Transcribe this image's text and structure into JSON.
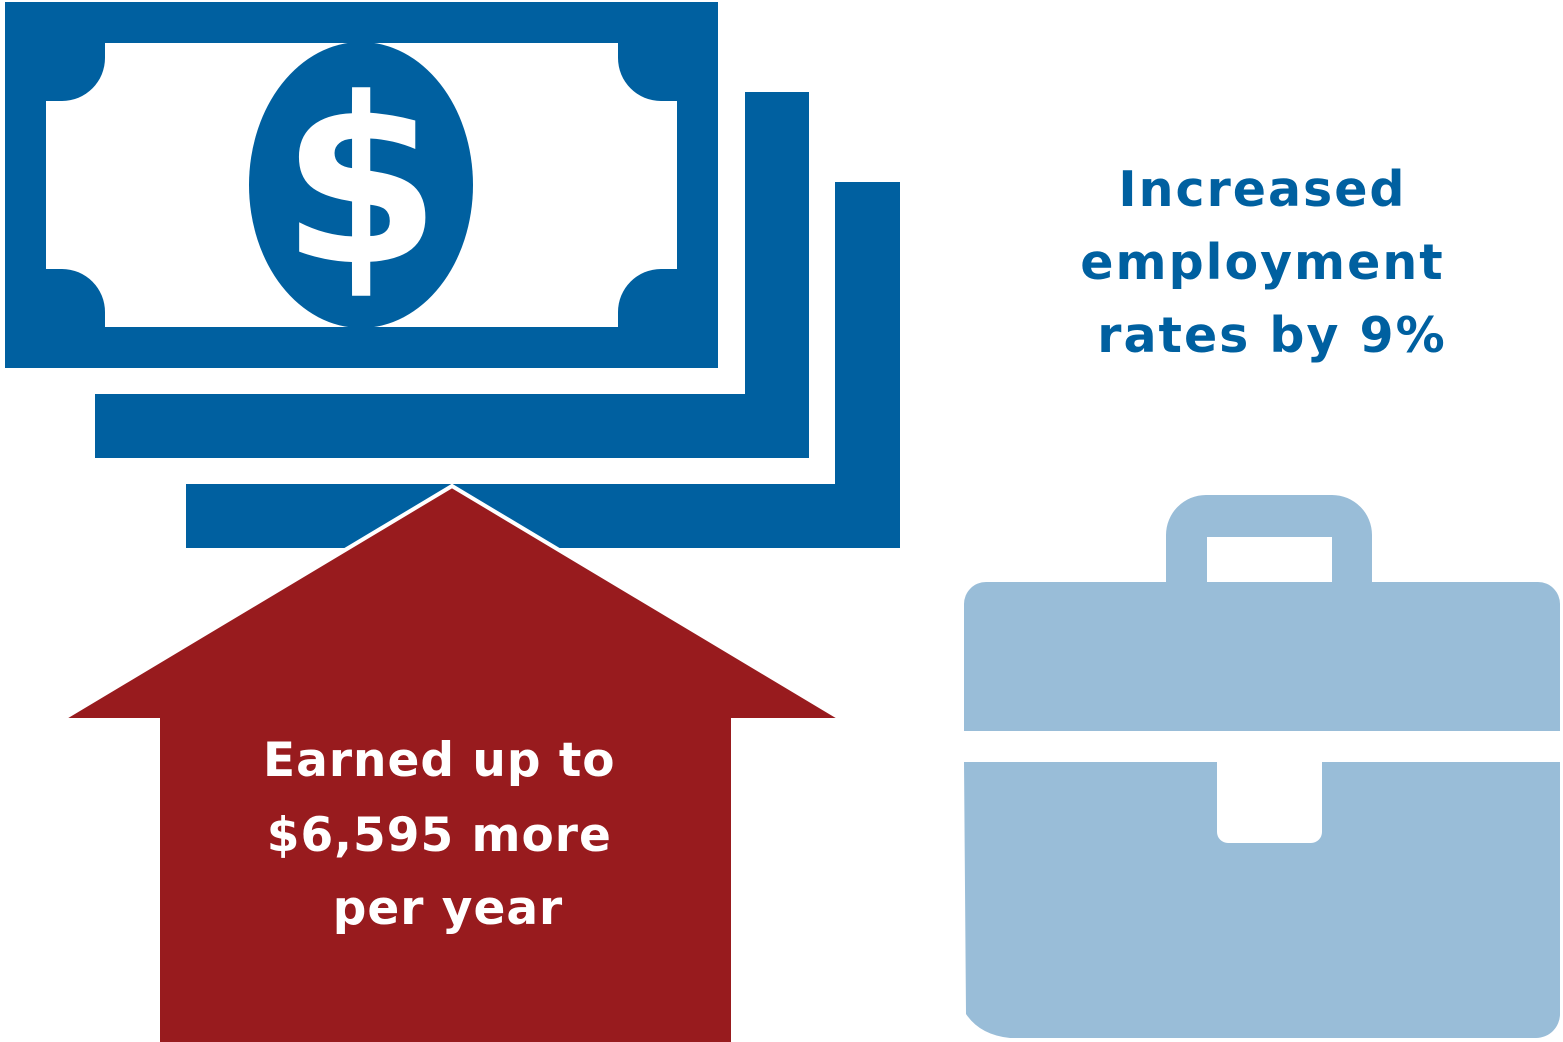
{
  "colors": {
    "money_blue": "#0060A0",
    "arrow_red": "#981B1E",
    "briefcase_blue": "#99BDD8",
    "background": "#FFFFFF"
  },
  "icons": {
    "money": "dollar-bills-icon",
    "arrow": "up-arrow-icon",
    "briefcase": "briefcase-icon"
  },
  "money_symbol": "$",
  "earnings": {
    "lines": [
      "Earned up to",
      "$6,595 more",
      "per year"
    ]
  },
  "employment": {
    "lines": [
      "Increased",
      "employment",
      "rates by 9%"
    ]
  }
}
